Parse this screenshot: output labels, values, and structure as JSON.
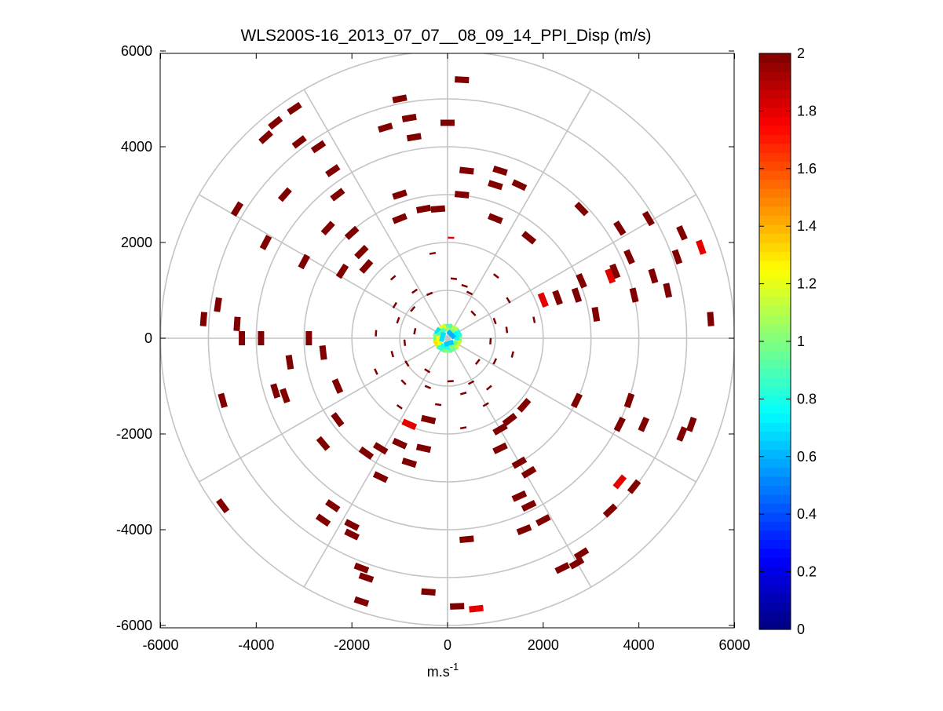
{
  "chart_data": {
    "type": "polar-ppi-scatter",
    "title": "WLS200S-16_2013_07_07__08_09_14_PPI_Disp (m/s)",
    "xlabel": "m.s",
    "xlabel_superscript": "-1",
    "ylabel": "",
    "xlim": [
      -6000,
      6000
    ],
    "ylim": [
      -6000,
      6000
    ],
    "xticks": [
      -6000,
      -4000,
      -2000,
      0,
      2000,
      4000,
      6000
    ],
    "yticks": [
      6000,
      4000,
      2000,
      0,
      -2000,
      -4000,
      -6000
    ],
    "xtick_labels": [
      "-6000",
      "-4000",
      "-2000",
      "0",
      "2000",
      "4000",
      "6000"
    ],
    "ytick_labels": [
      "6000",
      "4000",
      "2000",
      "0",
      "-2000",
      "-4000",
      "-6000"
    ],
    "polar_grid": {
      "rings": [
        1000,
        2000,
        3000,
        4000,
        5000,
        6000
      ],
      "spokes_deg": [
        0,
        30,
        60,
        90,
        120,
        150,
        180,
        210,
        240,
        270,
        300,
        330
      ]
    },
    "colorbar": {
      "min": 0,
      "max": 2,
      "ticks": [
        0,
        0.2,
        0.4,
        0.6,
        0.8,
        1,
        1.2,
        1.4,
        1.6,
        1.8,
        2
      ],
      "tick_labels": [
        "0",
        "0.2",
        "0.4",
        "0.6",
        "0.8",
        "1",
        "1.2",
        "1.4",
        "1.6",
        "1.8",
        "2"
      ],
      "colormap": "jet"
    },
    "points": [
      {
        "x": 300,
        "y": 5400,
        "v": 2
      },
      {
        "x": -1000,
        "y": 5000,
        "v": 2
      },
      {
        "x": -1300,
        "y": 4400,
        "v": 2
      },
      {
        "x": -800,
        "y": 4600,
        "v": 2
      },
      {
        "x": -700,
        "y": 4200,
        "v": 2
      },
      {
        "x": 0,
        "y": 4500,
        "v": 2
      },
      {
        "x": -3200,
        "y": 4800,
        "v": 2
      },
      {
        "x": -3600,
        "y": 4500,
        "v": 2
      },
      {
        "x": -3800,
        "y": 4200,
        "v": 2
      },
      {
        "x": -3100,
        "y": 4100,
        "v": 2
      },
      {
        "x": -2700,
        "y": 4000,
        "v": 2
      },
      {
        "x": -2400,
        "y": 3500,
        "v": 2
      },
      {
        "x": -2300,
        "y": 3000,
        "v": 2
      },
      {
        "x": -3400,
        "y": 3000,
        "v": 2
      },
      {
        "x": -4400,
        "y": 2700,
        "v": 2
      },
      {
        "x": -2500,
        "y": 2300,
        "v": 2
      },
      {
        "x": -2000,
        "y": 2200,
        "v": 2
      },
      {
        "x": -1800,
        "y": 1800,
        "v": 2
      },
      {
        "x": -1700,
        "y": 1500,
        "v": 2
      },
      {
        "x": -3800,
        "y": 2000,
        "v": 2
      },
      {
        "x": -3000,
        "y": 1600,
        "v": 2
      },
      {
        "x": -2200,
        "y": 1400,
        "v": 2
      },
      {
        "x": -1000,
        "y": 2500,
        "v": 2
      },
      {
        "x": -500,
        "y": 2700,
        "v": 2
      },
      {
        "x": -1000,
        "y": 3000,
        "v": 2
      },
      {
        "x": -200,
        "y": 2700,
        "v": 2
      },
      {
        "x": 400,
        "y": 3500,
        "v": 2
      },
      {
        "x": 1100,
        "y": 3500,
        "v": 2
      },
      {
        "x": 1500,
        "y": 3200,
        "v": 2
      },
      {
        "x": 1000,
        "y": 3200,
        "v": 2
      },
      {
        "x": 300,
        "y": 3000,
        "v": 2
      },
      {
        "x": 1000,
        "y": 2500,
        "v": 2
      },
      {
        "x": 2800,
        "y": 2700,
        "v": 2
      },
      {
        "x": 1700,
        "y": 2100,
        "v": 2
      },
      {
        "x": 3600,
        "y": 2300,
        "v": 2
      },
      {
        "x": 4200,
        "y": 2500,
        "v": 2
      },
      {
        "x": 4900,
        "y": 2200,
        "v": 2
      },
      {
        "x": 5300,
        "y": 1900,
        "v": 1.8
      },
      {
        "x": 4800,
        "y": 1700,
        "v": 2
      },
      {
        "x": 4300,
        "y": 1300,
        "v": 2
      },
      {
        "x": 4600,
        "y": 1000,
        "v": 2
      },
      {
        "x": 3800,
        "y": 1700,
        "v": 2
      },
      {
        "x": 3500,
        "y": 1400,
        "v": 2
      },
      {
        "x": 3400,
        "y": 1300,
        "v": 1.8
      },
      {
        "x": 2800,
        "y": 1200,
        "v": 2
      },
      {
        "x": 2700,
        "y": 900,
        "v": 2
      },
      {
        "x": 2300,
        "y": 850,
        "v": 2
      },
      {
        "x": 2000,
        "y": 800,
        "v": 1.8
      },
      {
        "x": 3900,
        "y": 900,
        "v": 2
      },
      {
        "x": 5500,
        "y": 400,
        "v": 2
      },
      {
        "x": 3100,
        "y": 500,
        "v": 2
      },
      {
        "x": -5100,
        "y": 400,
        "v": 2
      },
      {
        "x": -4800,
        "y": 700,
        "v": 2
      },
      {
        "x": -4400,
        "y": 300,
        "v": 2
      },
      {
        "x": -4300,
        "y": 0,
        "v": 2
      },
      {
        "x": -3900,
        "y": 0,
        "v": 2
      },
      {
        "x": -2900,
        "y": 0,
        "v": 2
      },
      {
        "x": -2600,
        "y": -300,
        "v": 2
      },
      {
        "x": -3300,
        "y": -500,
        "v": 2
      },
      {
        "x": -2300,
        "y": -1000,
        "v": 2
      },
      {
        "x": -3600,
        "y": -1100,
        "v": 2
      },
      {
        "x": -3400,
        "y": -1200,
        "v": 2
      },
      {
        "x": -4700,
        "y": -1300,
        "v": 2
      },
      {
        "x": -2300,
        "y": -1700,
        "v": 2
      },
      {
        "x": -2600,
        "y": -2200,
        "v": 2
      },
      {
        "x": -1700,
        "y": -2400,
        "v": 2
      },
      {
        "x": -1400,
        "y": -2300,
        "v": 2
      },
      {
        "x": -1400,
        "y": -2900,
        "v": 2
      },
      {
        "x": -4700,
        "y": -3500,
        "v": 2
      },
      {
        "x": -2400,
        "y": -3500,
        "v": 2
      },
      {
        "x": -2600,
        "y": -3800,
        "v": 2
      },
      {
        "x": -2000,
        "y": -3900,
        "v": 2
      },
      {
        "x": -2000,
        "y": -4100,
        "v": 2
      },
      {
        "x": -1800,
        "y": -4800,
        "v": 2
      },
      {
        "x": -1700,
        "y": -5000,
        "v": 2
      },
      {
        "x": -1800,
        "y": -5500,
        "v": 2
      },
      {
        "x": -400,
        "y": -5300,
        "v": 2
      },
      {
        "x": 200,
        "y": -5600,
        "v": 2
      },
      {
        "x": 600,
        "y": -5650,
        "v": 1.8
      },
      {
        "x": 400,
        "y": -4200,
        "v": 2
      },
      {
        "x": -800,
        "y": -2600,
        "v": 2
      },
      {
        "x": -1000,
        "y": -2200,
        "v": 2
      },
      {
        "x": -500,
        "y": -2300,
        "v": 2
      },
      {
        "x": -400,
        "y": -1700,
        "v": 2
      },
      {
        "x": -800,
        "y": -1800,
        "v": 1.8
      },
      {
        "x": 1100,
        "y": -2300,
        "v": 2
      },
      {
        "x": 1500,
        "y": -2600,
        "v": 2
      },
      {
        "x": 1700,
        "y": -2800,
        "v": 2
      },
      {
        "x": 1500,
        "y": -3300,
        "v": 2
      },
      {
        "x": 1700,
        "y": -3500,
        "v": 2
      },
      {
        "x": 2000,
        "y": -3800,
        "v": 2
      },
      {
        "x": 1600,
        "y": -4000,
        "v": 2
      },
      {
        "x": 2400,
        "y": -4800,
        "v": 2
      },
      {
        "x": 2700,
        "y": -4700,
        "v": 2
      },
      {
        "x": 2800,
        "y": -4500,
        "v": 2
      },
      {
        "x": 3400,
        "y": -3600,
        "v": 2
      },
      {
        "x": 3600,
        "y": -3000,
        "v": 1.8
      },
      {
        "x": 3900,
        "y": -3100,
        "v": 2
      },
      {
        "x": 3600,
        "y": -1800,
        "v": 2
      },
      {
        "x": 4100,
        "y": -1800,
        "v": 2
      },
      {
        "x": 3800,
        "y": -1300,
        "v": 2
      },
      {
        "x": 5100,
        "y": -1800,
        "v": 2
      },
      {
        "x": 4900,
        "y": -2000,
        "v": 2
      },
      {
        "x": 1600,
        "y": -1400,
        "v": 2
      },
      {
        "x": 1300,
        "y": -1700,
        "v": 2
      },
      {
        "x": 1100,
        "y": -1900,
        "v": 2
      },
      {
        "x": 2700,
        "y": -1300,
        "v": 2
      }
    ],
    "near_points": [
      {
        "r": 1150,
        "a": 72,
        "v": 2
      },
      {
        "r": 1050,
        "a": 64,
        "v": 2
      },
      {
        "r": 1250,
        "a": 84,
        "v": 2
      },
      {
        "r": 2100,
        "a": 88,
        "v": 1.8
      },
      {
        "r": 1000,
        "a": 112,
        "v": 2
      },
      {
        "r": 1200,
        "a": 125,
        "v": 2
      },
      {
        "r": 950,
        "a": 140,
        "v": 2
      },
      {
        "r": 1300,
        "a": 148,
        "v": 2
      },
      {
        "r": 1100,
        "a": 160,
        "v": 2
      },
      {
        "r": 700,
        "a": 168,
        "v": 2
      },
      {
        "r": 1500,
        "a": 176,
        "v": 2
      },
      {
        "r": 900,
        "a": 186,
        "v": 2
      },
      {
        "r": 1200,
        "a": 196,
        "v": 2
      },
      {
        "r": 1000,
        "a": 212,
        "v": 2
      },
      {
        "r": 1300,
        "a": 225,
        "v": 2
      },
      {
        "r": 800,
        "a": 238,
        "v": 2
      },
      {
        "r": 1100,
        "a": 248,
        "v": 2
      },
      {
        "r": 1400,
        "a": 262,
        "v": 2
      },
      {
        "r": 900,
        "a": 274,
        "v": 2
      },
      {
        "r": 1200,
        "a": 286,
        "v": 2
      },
      {
        "r": 1050,
        "a": 298,
        "v": 2
      },
      {
        "r": 1350,
        "a": 310,
        "v": 2
      },
      {
        "r": 800,
        "a": 322,
        "v": 2
      },
      {
        "r": 1100,
        "a": 334,
        "v": 2
      },
      {
        "r": 1400,
        "a": 346,
        "v": 2
      },
      {
        "r": 900,
        "a": 356,
        "v": 2
      },
      {
        "r": 1250,
        "a": 8,
        "v": 2
      },
      {
        "r": 1050,
        "a": 20,
        "v": 2
      },
      {
        "r": 1500,
        "a": 32,
        "v": 2
      },
      {
        "r": 750,
        "a": 44,
        "v": 2
      },
      {
        "r": 1650,
        "a": 52,
        "v": 2
      },
      {
        "r": 1800,
        "a": 100,
        "v": 2
      },
      {
        "r": 1700,
        "a": 132,
        "v": 2
      },
      {
        "r": 1650,
        "a": 205,
        "v": 2
      },
      {
        "r": 1750,
        "a": 235,
        "v": 2
      },
      {
        "r": 1900,
        "a": 280,
        "v": 2
      },
      {
        "r": 1600,
        "a": 300,
        "v": 2
      },
      {
        "r": 1850,
        "a": 12,
        "v": 2
      }
    ],
    "center_points": [
      {
        "r": 250,
        "a": 0,
        "v": 1
      },
      {
        "r": 250,
        "a": 30,
        "v": 0.8
      },
      {
        "r": 250,
        "a": 60,
        "v": 1.1
      },
      {
        "r": 250,
        "a": 90,
        "v": 0.9
      },
      {
        "r": 250,
        "a": 120,
        "v": 1.2
      },
      {
        "r": 250,
        "a": 150,
        "v": 0.7
      },
      {
        "r": 250,
        "a": 180,
        "v": 1
      },
      {
        "r": 250,
        "a": 210,
        "v": 1.3
      },
      {
        "r": 250,
        "a": 240,
        "v": 0.85
      },
      {
        "r": 250,
        "a": 270,
        "v": 1
      },
      {
        "r": 250,
        "a": 300,
        "v": 0.95
      },
      {
        "r": 250,
        "a": 330,
        "v": 1.15
      },
      {
        "r": 180,
        "a": 15,
        "v": 0.75
      },
      {
        "r": 180,
        "a": 75,
        "v": 1.05
      },
      {
        "r": 180,
        "a": 135,
        "v": 0.9
      },
      {
        "r": 180,
        "a": 195,
        "v": 1.25
      },
      {
        "r": 180,
        "a": 255,
        "v": 0.8
      },
      {
        "r": 180,
        "a": 315,
        "v": 1
      },
      {
        "r": 110,
        "a": 45,
        "v": 0.6
      },
      {
        "r": 110,
        "a": 165,
        "v": 0.7
      },
      {
        "r": 110,
        "a": 285,
        "v": 0.65
      }
    ]
  }
}
